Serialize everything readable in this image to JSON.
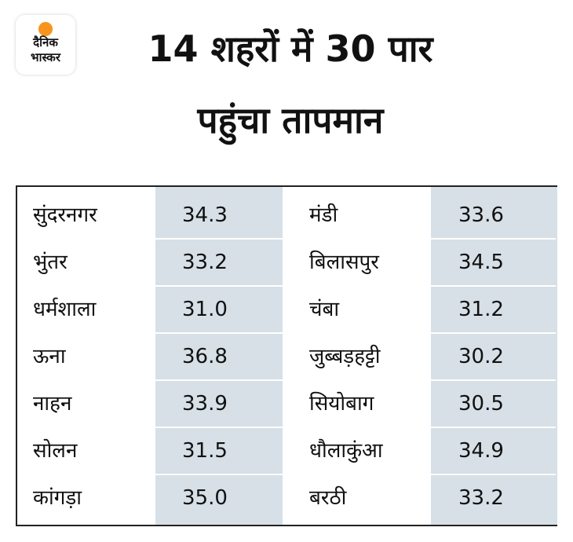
{
  "logo": {
    "line1": "दैनिक",
    "line2": "भास्कर"
  },
  "title": {
    "line1": "14 शहरों में 30 पार",
    "line2": "पहुंचा तापमान"
  },
  "colors": {
    "shade": "#d6e0e6",
    "border": "#222222",
    "logo_sun": "#f7941d"
  },
  "rows": [
    {
      "city1": "सुंदरनगर",
      "temp1": "34.3",
      "city2": "मंडी",
      "temp2": "33.6"
    },
    {
      "city1": "भुंतर",
      "temp1": "33.2",
      "city2": "बिलासपुर",
      "temp2": "34.5"
    },
    {
      "city1": "धर्मशाला",
      "temp1": "31.0",
      "city2": "चंबा",
      "temp2": "31.2"
    },
    {
      "city1": "ऊना",
      "temp1": "36.8",
      "city2": "जुब्बड़हट्टी",
      "temp2": "30.2"
    },
    {
      "city1": "नाहन",
      "temp1": "33.9",
      "city2": "सियोबाग",
      "temp2": "30.5"
    },
    {
      "city1": "सोलन",
      "temp1": "31.5",
      "city2": "धौलाकुंआ",
      "temp2": "34.9"
    },
    {
      "city1": "कांगड़ा",
      "temp1": "35.0",
      "city2": "बरठी",
      "temp2": "33.2"
    }
  ]
}
